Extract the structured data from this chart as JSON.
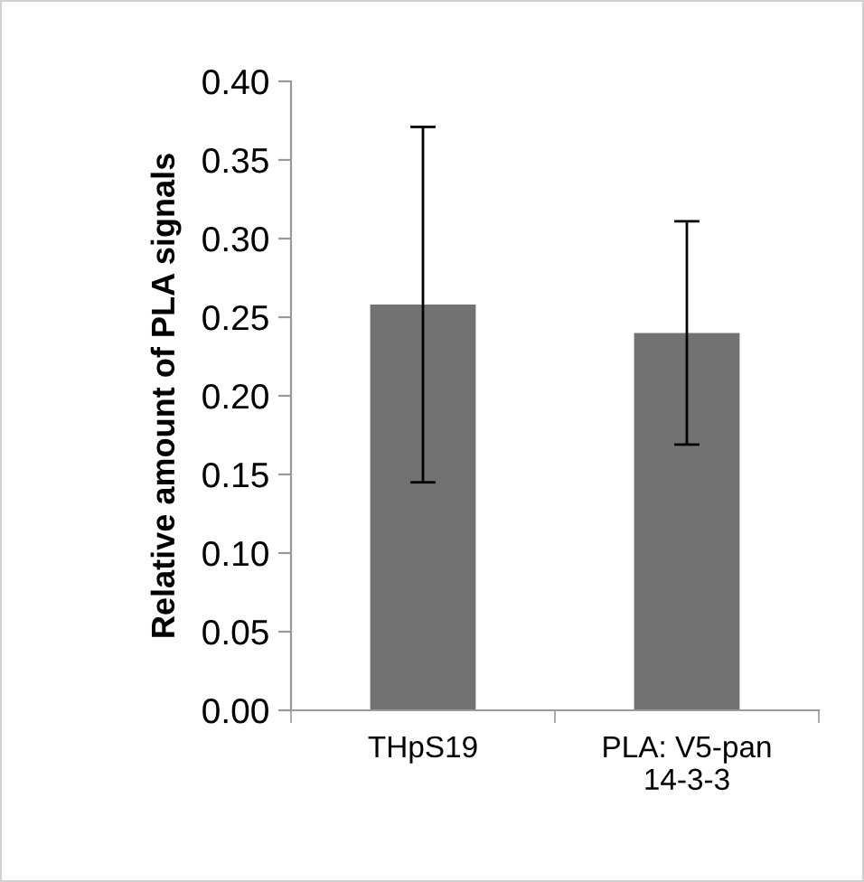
{
  "chart_data": {
    "type": "bar",
    "ylabel": "Relative amount of PLA signals",
    "categories": [
      "THpS19",
      "PLA: V5-pan\n14-3-3"
    ],
    "values": [
      0.258,
      0.24
    ],
    "errors": [
      0.113,
      0.071
    ],
    "color": "#727272",
    "ylim": [
      0,
      0.4
    ],
    "yticks": [
      {
        "value": 0,
        "label": "0.00"
      },
      {
        "value": 0.05,
        "label": "0.05"
      },
      {
        "value": 0.1,
        "label": "0.10"
      },
      {
        "value": 0.15,
        "label": "0.15"
      },
      {
        "value": 0.2,
        "label": "0.20"
      },
      {
        "value": 0.25,
        "label": "0.25"
      },
      {
        "value": 0.3,
        "label": "0.30"
      },
      {
        "value": 0.35,
        "label": "0.35"
      },
      {
        "value": 0.4,
        "label": "0.40"
      }
    ],
    "grid": false
  }
}
